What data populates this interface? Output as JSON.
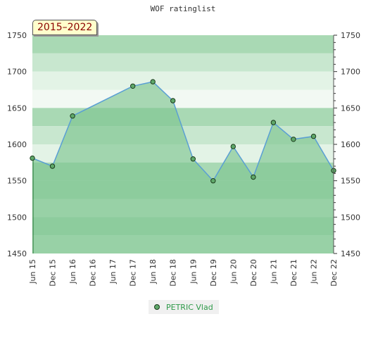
{
  "title": "WOF ratinglist",
  "period_label": "2015–2022",
  "chart_data": {
    "type": "area",
    "title": "WOF ratinglist",
    "xlabel": "",
    "ylabel": "",
    "categories": [
      "Jun 15",
      "Dec 15",
      "Jun 16",
      "Dec 16",
      "Jun 17",
      "Dec 17",
      "Jun 18",
      "Dec 18",
      "Jun 19",
      "Dec 19",
      "Jun 20",
      "Dec 20",
      "Jun 21",
      "Dec 21",
      "Jun 22",
      "Dec 22"
    ],
    "yticks": [
      1450,
      1500,
      1550,
      1600,
      1650,
      1700,
      1750
    ],
    "ylim": [
      1450,
      1750
    ],
    "grid": true,
    "legend_position": "bottom-center",
    "series": [
      {
        "name": "PETRIC Vlad",
        "points": [
          {
            "x": "Jun 15",
            "y": 1581
          },
          {
            "x": "Dec 15",
            "y": 1570
          },
          {
            "x": "Jun 16",
            "y": 1639
          },
          {
            "x": "Dec 17",
            "y": 1680
          },
          {
            "x": "Jun 18",
            "y": 1686
          },
          {
            "x": "Dec 18",
            "y": 1660
          },
          {
            "x": "Jun 19",
            "y": 1580
          },
          {
            "x": "Dec 19",
            "y": 1550
          },
          {
            "x": "Jun 20",
            "y": 1597
          },
          {
            "x": "Dec 20",
            "y": 1555
          },
          {
            "x": "Jun 21",
            "y": 1630
          },
          {
            "x": "Dec 21",
            "y": 1607
          },
          {
            "x": "Jun 22",
            "y": 1611
          },
          {
            "x": "Dec 22",
            "y": 1564
          }
        ]
      }
    ],
    "colors": {
      "line": "#5a9fd4",
      "marker_fill": "#5fa86a",
      "marker_stroke": "#1a3a1a",
      "area_fill": "#7ec490",
      "band_dark": "#a9d9b4",
      "band_mid": "#c8e7cf",
      "band_light": "#e3f3e6",
      "band_pale": "#f2f9f3",
      "legend_text": "#2f9a4a"
    }
  }
}
